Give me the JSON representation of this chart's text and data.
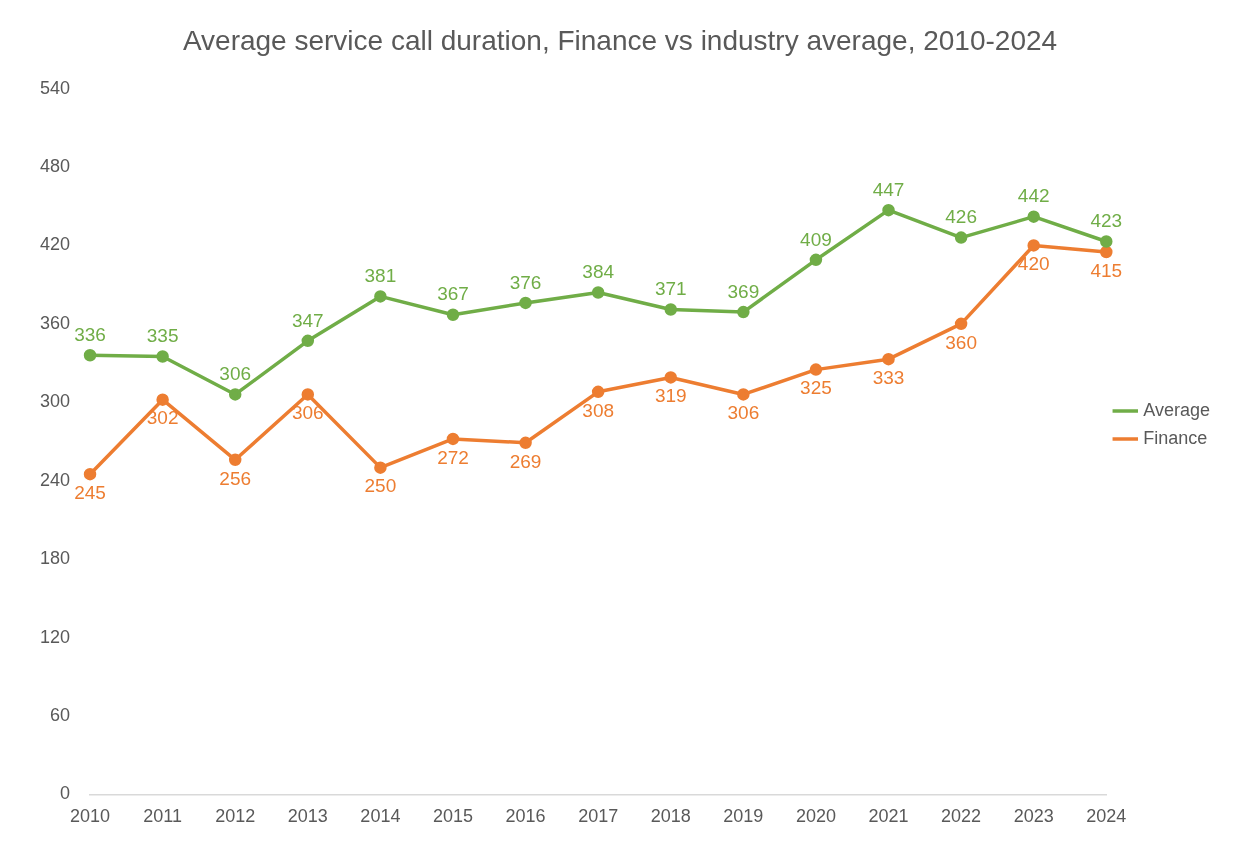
{
  "chart_data": {
    "type": "line",
    "title": "Average service call duration, Finance vs industry average, 2010-2024",
    "categories": [
      "2010",
      "2011",
      "2012",
      "2013",
      "2014",
      "2015",
      "2016",
      "2017",
      "2018",
      "2019",
      "2020",
      "2021",
      "2022",
      "2023",
      "2024"
    ],
    "series": [
      {
        "name": "Average",
        "color": "#70ad47",
        "values": [
          336,
          335,
          306,
          347,
          381,
          367,
          376,
          384,
          371,
          369,
          409,
          447,
          426,
          442,
          423
        ]
      },
      {
        "name": "Finance",
        "color": "#ed7d31",
        "values": [
          245,
          302,
          256,
          306,
          250,
          272,
          269,
          308,
          319,
          306,
          325,
          333,
          360,
          420,
          415
        ]
      }
    ],
    "ylim": [
      0,
      540
    ],
    "yticks": [
      0,
      60,
      120,
      180,
      240,
      300,
      360,
      420,
      480,
      540
    ],
    "grid": false,
    "legend": "right",
    "marker": "circle",
    "line_style": "solid",
    "data_labels": true
  }
}
